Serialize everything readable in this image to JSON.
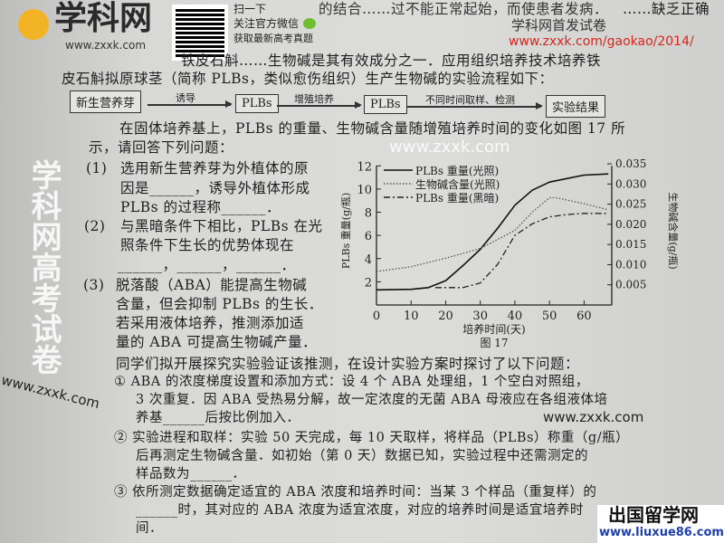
{
  "header": {
    "line0": "的结合……过不能正常起始，而使患者发病．",
    "line0_right": "……缺乏正确",
    "logo_text": "学科网",
    "logo_url": "www.zxxk.com",
    "qr_caption1": "扫一下",
    "qr_caption2": "关注官方微信",
    "qr_caption3": "获取最新高考真题",
    "release_label": "学科网首发试卷",
    "release_url": "www.zxxk.com/gaokao/2014/"
  },
  "intro": {
    "line1": "铁皮石斛……生物碱是其有效成分之一．应用组织培养技术培养铁",
    "line2": "皮石斛拟原球茎（简称 PLBs，类似愈伤组织）生产生物碱的实验流程如下："
  },
  "flow": {
    "boxes": [
      "新生营养芽",
      "PLBs",
      "PLBs",
      "实验结果"
    ],
    "arrows": [
      "诱导",
      "增殖培养",
      "不同时间取样、检测"
    ]
  },
  "body": {
    "p1": "在固体培养基上，PLBs 的重量、生物碱含量随增殖培养时间的变化如图 17 所",
    "p2": "示，请回答下列问题：",
    "q1_num": "(1)",
    "q1_l1": "选用新生营养芽为外植体的原",
    "q1_l2": "因是______，诱导外植体形成",
    "q1_l3": "PLBs 的过程称______．",
    "q2_num": "(2)",
    "q2_l1": "与黑暗条件下相比，PLBs 在光",
    "q2_l2": "照条件下生长的优势体现在",
    "q2_l3": "______，______，______．",
    "q3_num": "(3)",
    "q3_l1": "脱落酸（ABA）能提高生物碱",
    "q3_l2": "含量，但会抑制 PLBs 的生长．",
    "q3_l3": "若采用液体培养，推测添加适",
    "q3_l4": "量的 ABA 可提高生物碱产量．",
    "q3_l5": "同学们拟开展探究实验验证该推测，在设计实验方案时探讨了以下问题：",
    "s1_l1": "① ABA 的浓度梯度设置和添加方式：设 4 个 ABA 处理组，1 个空白对照组，",
    "s1_l2": "3 次重复．因 ABA 受热易分解，故一定浓度的无菌 ABA 母液应在各组液体培",
    "s1_l3": "养基______后按比例加入．",
    "s2_l1": "② 实验进程和取样：实验 50 天完成，每 10 天取样，将样品（PLBs）称重（g/瓶）",
    "s2_l2": "后再测定生物碱含量．如初始（第 0 天）数据已知，实验过程中还需测定的",
    "s2_l3": "样品数为______．",
    "s3_l1": "③ 依所测定数据确定适宜的 ABA 浓度和培养时间：当某 3 个样品（重复样）的",
    "s3_l2": "______时，其对应的 ABA 浓度为适宜浓度，对应的培养时间是适宜培养时间．"
  },
  "watermarks": {
    "zxxk1": "www.zxxk.com",
    "zxxk2": "www.zxxk.com",
    "zxxk3": "www.zxxk.com",
    "liuxue_title": "出国留学网",
    "liuxue_url": "www.liuxue86.com",
    "bottom_banner": "学科网高考试卷"
  },
  "colors": {
    "release_url": "#d8261c",
    "liuxue_url": "#1f3fb0"
  },
  "chart_data": {
    "type": "line",
    "caption": "图 17",
    "xlabel": "培养时间(天)",
    "ylabel": "PLBs 重量(g/瓶)",
    "y2label": "生物碱含量(g/瓶)",
    "xlim": [
      0,
      68
    ],
    "ylim": [
      0,
      12.8
    ],
    "y2lim": [
      0,
      0.0368
    ],
    "xticks": [
      0,
      10,
      20,
      30,
      40,
      50,
      60
    ],
    "yticks": [
      2,
      4,
      6,
      8,
      10,
      12
    ],
    "y2ticks": [
      0.005,
      0.01,
      0.015,
      0.02,
      0.025,
      0.03,
      0.035
    ],
    "legend_position": "top-left",
    "series": [
      {
        "name": "PLBs 重量(光照)",
        "axis": "left",
        "style": "solid",
        "x": [
          0,
          10,
          15,
          20,
          25,
          30,
          35,
          40,
          45,
          50,
          55,
          60,
          67
        ],
        "y": [
          1.3,
          1.35,
          1.5,
          2.1,
          3.4,
          4.8,
          6.6,
          8.6,
          9.9,
          10.6,
          10.9,
          11.2,
          11.3
        ]
      },
      {
        "name": "生物碱含量(光照)",
        "axis": "right",
        "style": "dotted",
        "x": [
          0,
          10,
          20,
          30,
          40,
          45,
          50,
          52,
          60,
          67
        ],
        "y": [
          0.0083,
          0.0095,
          0.0116,
          0.014,
          0.0185,
          0.023,
          0.0266,
          0.0266,
          0.0251,
          0.0236
        ]
      },
      {
        "name": "PLBs 重量(黑暗)",
        "axis": "left",
        "style": "dashdot",
        "x": [
          17,
          25,
          30,
          35,
          40,
          45,
          50,
          55,
          60,
          67
        ],
        "y": [
          1.5,
          1.5,
          1.9,
          3.5,
          6.0,
          7.0,
          7.6,
          7.8,
          7.9,
          7.9
        ]
      }
    ]
  }
}
